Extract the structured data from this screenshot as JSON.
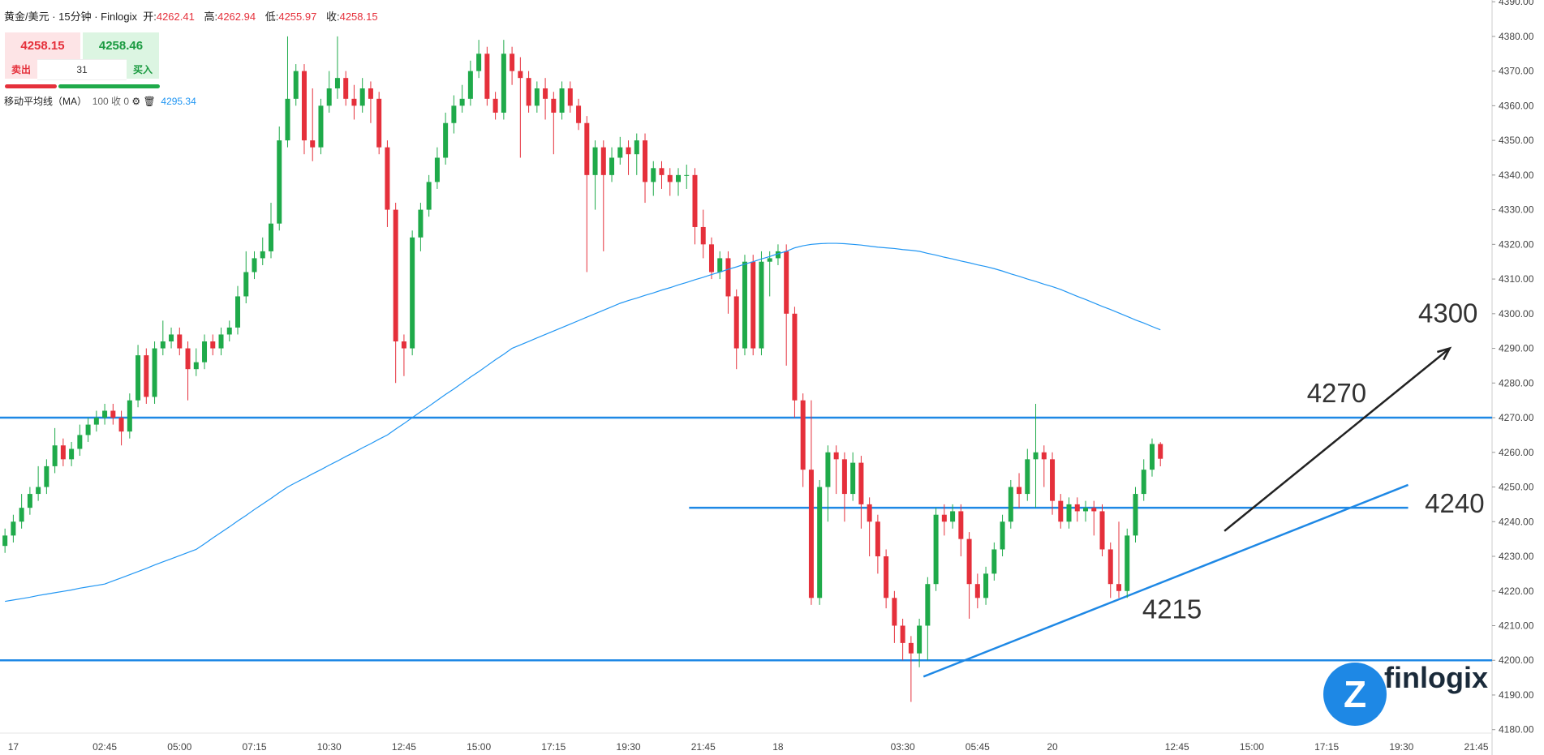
{
  "header": {
    "symbol": "黄金/美元 · 15分钟 · Finlogix",
    "open_label": "开:",
    "high_label": "高:",
    "low_label": "低:",
    "close_label": "收:"
  },
  "quote": {
    "sell": 4258.15,
    "buy": 4258.46,
    "spread": 31,
    "sell_label": "卖出",
    "buy_label": "买入"
  },
  "indicator": {
    "params": "100 收 0"
  },
  "logo": "finlogix",
  "chart_data": {
    "type": "candlestick",
    "up_color": "#1faa4a",
    "down_color": "#e5303b",
    "open": [
      4233,
      4236,
      4240,
      4244,
      4248,
      4250,
      4256,
      4262,
      4258,
      4261,
      4265,
      4268,
      4270,
      4272,
      4270,
      4266,
      4275,
      4288,
      4276,
      4290,
      4292,
      4294,
      4290,
      4284,
      4286,
      4292,
      4290,
      4294,
      4296,
      4305,
      4312,
      4316,
      4318,
      4326,
      4350,
      4362,
      4370,
      4350,
      4348,
      4360,
      4365,
      4368,
      4362,
      4360,
      4365,
      4362,
      4348,
      4330,
      4292,
      4290,
      4322,
      4330,
      4338,
      4345,
      4355,
      4360,
      4362,
      4370,
      4375,
      4362,
      4358,
      4375,
      4370,
      4368,
      4360,
      4365,
      4362,
      4358,
      4365,
      4360,
      4355,
      4340,
      4348,
      4340,
      4345,
      4348,
      4346,
      4350,
      4338,
      4342,
      4340,
      4338,
      4340,
      4340,
      4325,
      4320,
      4312,
      4316,
      4305,
      4290,
      4315,
      4290,
      4315,
      4316,
      4318,
      4300,
      4275,
      4255,
      4218,
      4250,
      4260,
      4258,
      4248,
      4257,
      4245,
      4240,
      4230,
      4218,
      4210,
      4205,
      4202,
      4210,
      4222,
      4242,
      4240,
      4243,
      4235,
      4222,
      4218,
      4225,
      4232,
      4240,
      4250,
      4248,
      4258,
      4260,
      4258,
      4246,
      4240,
      4245,
      4243,
      4244,
      4243,
      4232,
      4222,
      4220,
      4236,
      4248,
      4255,
      4262.41
    ],
    "high": [
      4238,
      4242,
      4248,
      4250,
      4256,
      4258,
      4267,
      4264,
      4263,
      4268,
      4270,
      4272,
      4274,
      4274,
      4272,
      4277,
      4291,
      4290,
      4292,
      4298,
      4296,
      4296,
      4292,
      4290,
      4294,
      4294,
      4296,
      4298,
      4308,
      4318,
      4318,
      4322,
      4332,
      4354,
      4380,
      4372,
      4372,
      4365,
      4362,
      4370,
      4380,
      4370,
      4366,
      4368,
      4367,
      4364,
      4350,
      4332,
      4294,
      4324,
      4332,
      4340,
      4348,
      4358,
      4363,
      4366,
      4373,
      4379,
      4377,
      4364,
      4379,
      4377,
      4374,
      4370,
      4367,
      4368,
      4364,
      4367,
      4367,
      4362,
      4357,
      4350,
      4350,
      4348,
      4351,
      4350,
      4352,
      4352,
      4344,
      4344,
      4342,
      4342,
      4343,
      4342,
      4330,
      4322,
      4318,
      4318,
      4307,
      4317,
      4317,
      4318,
      4318,
      4320,
      4320,
      4302,
      4277,
      4275,
      4252,
      4262,
      4262,
      4260,
      4260,
      4259,
      4247,
      4242,
      4232,
      4220,
      4212,
      4207,
      4212,
      4224,
      4244,
      4245,
      4245,
      4245,
      4237,
      4225,
      4227,
      4234,
      4242,
      4252,
      4254,
      4261,
      4274,
      4262,
      4260,
      4248,
      4247,
      4247,
      4246,
      4246,
      4245,
      4234,
      4240,
      4238,
      4250,
      4258,
      4264,
      4262.94
    ],
    "low": [
      4231,
      4234,
      4238,
      4242,
      4246,
      4248,
      4254,
      4256,
      4256,
      4259,
      4263,
      4266,
      4268,
      4268,
      4262,
      4264,
      4273,
      4274,
      4274,
      4288,
      4290,
      4288,
      4275,
      4282,
      4284,
      4288,
      4288,
      4292,
      4294,
      4303,
      4310,
      4314,
      4316,
      4324,
      4348,
      4360,
      4346,
      4344,
      4346,
      4358,
      4362,
      4360,
      4356,
      4358,
      4355,
      4346,
      4325,
      4280,
      4282,
      4288,
      4318,
      4328,
      4336,
      4343,
      4352,
      4358,
      4360,
      4368,
      4360,
      4356,
      4356,
      4366,
      4345,
      4358,
      4358,
      4356,
      4346,
      4356,
      4358,
      4353,
      4312,
      4330,
      4318,
      4338,
      4343,
      4340,
      4340,
      4332,
      4334,
      4336,
      4334,
      4334,
      4336,
      4320,
      4316,
      4310,
      4310,
      4300,
      4284,
      4288,
      4288,
      4288,
      4305,
      4314,
      4285,
      4270,
      4250,
      4216,
      4216,
      4240,
      4248,
      4240,
      4246,
      4238,
      4230,
      4225,
      4215,
      4205,
      4200,
      4188,
      4198,
      4200,
      4220,
      4236,
      4238,
      4230,
      4212,
      4215,
      4216,
      4223,
      4230,
      4238,
      4244,
      4246,
      4244,
      4250,
      4242,
      4238,
      4238,
      4240,
      4240,
      4236,
      4230,
      4218,
      4218,
      4218,
      4234,
      4246,
      4253,
      4255.97
    ],
    "close": [
      4236,
      4240,
      4244,
      4248,
      4250,
      4256,
      4262,
      4258,
      4261,
      4265,
      4268,
      4270,
      4272,
      4270,
      4266,
      4275,
      4288,
      4276,
      4290,
      4292,
      4294,
      4290,
      4284,
      4286,
      4292,
      4290,
      4294,
      4296,
      4305,
      4312,
      4316,
      4318,
      4326,
      4350,
      4362,
      4370,
      4350,
      4348,
      4360,
      4365,
      4368,
      4362,
      4360,
      4365,
      4362,
      4348,
      4330,
      4292,
      4290,
      4322,
      4330,
      4338,
      4345,
      4355,
      4360,
      4362,
      4370,
      4375,
      4362,
      4358,
      4375,
      4370,
      4368,
      4360,
      4365,
      4362,
      4358,
      4365,
      4360,
      4355,
      4340,
      4348,
      4340,
      4345,
      4348,
      4346,
      4350,
      4338,
      4342,
      4340,
      4338,
      4340,
      4340,
      4325,
      4320,
      4312,
      4316,
      4305,
      4290,
      4315,
      4290,
      4315,
      4316,
      4318,
      4300,
      4275,
      4255,
      4218,
      4250,
      4260,
      4258,
      4248,
      4257,
      4245,
      4240,
      4230,
      4218,
      4210,
      4205,
      4202,
      4210,
      4222,
      4242,
      4240,
      4243,
      4235,
      4222,
      4218,
      4225,
      4232,
      4240,
      4250,
      4248,
      4258,
      4260,
      4258,
      4246,
      4240,
      4245,
      4243,
      4244,
      4243,
      4232,
      4222,
      4220,
      4236,
      4248,
      4255,
      4262.41,
      4258.15
    ],
    "series": [
      {
        "name": "移动平均线（MA）",
        "color": "#2196f3",
        "values": [
          4217,
          4217.4,
          4217.8,
          4218.2,
          4218.7,
          4219.1,
          4219.5,
          4219.9,
          4220.3,
          4220.8,
          4221.2,
          4221.6,
          4222,
          4222.9,
          4223.8,
          4224.7,
          4225.6,
          4226.5,
          4227.5,
          4228.4,
          4229.3,
          4230.2,
          4231.1,
          4232,
          4233.6,
          4235.3,
          4236.9,
          4238.5,
          4240.2,
          4241.8,
          4243.5,
          4245.1,
          4246.7,
          4248.4,
          4250,
          4251.3,
          4252.5,
          4253.8,
          4255,
          4256.3,
          4257.5,
          4258.8,
          4260,
          4261.3,
          4262.5,
          4263.8,
          4265,
          4266.7,
          4268.3,
          4270,
          4271.7,
          4273.3,
          4275,
          4276.7,
          4278.3,
          4280,
          4281.7,
          4283.3,
          4285,
          4286.7,
          4288.3,
          4290,
          4291,
          4292,
          4293,
          4294,
          4295,
          4296,
          4297,
          4298,
          4299,
          4300,
          4301,
          4302,
          4303,
          4303.8,
          4304.5,
          4305.3,
          4306,
          4306.8,
          4307.5,
          4308.3,
          4309,
          4309.8,
          4310.5,
          4311.3,
          4312,
          4312.8,
          4313.5,
          4314.3,
          4315,
          4315.8,
          4316.5,
          4317.3,
          4318,
          4319,
          4319.6,
          4320,
          4320.2,
          4320.3,
          4320.3,
          4320.2,
          4320,
          4319.8,
          4319.5,
          4319.2,
          4319,
          4318.8,
          4318.5,
          4318.3,
          4318,
          4317.4,
          4316.9,
          4316.3,
          4315.8,
          4315.2,
          4314.7,
          4314.1,
          4313.6,
          4313,
          4312.3,
          4311.5,
          4310.8,
          4310,
          4309.3,
          4308.5,
          4307.8,
          4307,
          4306,
          4305,
          4304.1,
          4303.1,
          4302.1,
          4301.2,
          4300.2,
          4299.2,
          4298.2,
          4297.3,
          4296.3,
          4295.34
        ]
      }
    ],
    "xlim": [
      -0.6,
      178.9
    ],
    "ylim": [
      4179,
      4390.5
    ],
    "xticks": [
      {
        "value": 1,
        "label": "17"
      },
      {
        "value": 12,
        "label": "02:45"
      },
      {
        "value": 21,
        "label": "05:00"
      },
      {
        "value": 30,
        "label": "07:15"
      },
      {
        "value": 39,
        "label": "10:30"
      },
      {
        "value": 48,
        "label": "12:45"
      },
      {
        "value": 57,
        "label": "15:00"
      },
      {
        "value": 66,
        "label": "17:15"
      },
      {
        "value": 75,
        "label": "19:30"
      },
      {
        "value": 84,
        "label": "21:45"
      },
      {
        "value": 93,
        "label": "18"
      },
      {
        "value": 108,
        "label": "03:30"
      },
      {
        "value": 117,
        "label": "05:45"
      },
      {
        "value": 126,
        "label": "20"
      },
      {
        "value": 141,
        "label": "12:45"
      },
      {
        "value": 150,
        "label": "15:00"
      },
      {
        "value": 159,
        "label": "17:15"
      },
      {
        "value": 168,
        "label": "19:30"
      },
      {
        "value": 177,
        "label": "21:45"
      }
    ],
    "yticks": [
      {
        "value": 4180,
        "label": "4180.00"
      },
      {
        "value": 4190,
        "label": "4190.00"
      },
      {
        "value": 4200,
        "label": "4200.00"
      },
      {
        "value": 4210,
        "label": "4210.00"
      },
      {
        "value": 4220,
        "label": "4220.00"
      },
      {
        "value": 4230,
        "label": "4230.00"
      },
      {
        "value": 4240,
        "label": "4240.00"
      },
      {
        "value": 4250,
        "label": "4250.00"
      },
      {
        "value": 4260,
        "label": "4260.00"
      },
      {
        "value": 4270,
        "label": "4270.00"
      },
      {
        "value": 4280,
        "label": "4280.00"
      },
      {
        "value": 4290,
        "label": "4290.00"
      },
      {
        "value": 4300,
        "label": "4300.00"
      },
      {
        "value": 4310,
        "label": "4310.00"
      },
      {
        "value": 4320,
        "label": "4320.00"
      },
      {
        "value": 4330,
        "label": "4330.00"
      },
      {
        "value": 4340,
        "label": "4340.00"
      },
      {
        "value": 4350,
        "label": "4350.00"
      },
      {
        "value": 4360,
        "label": "4360.00"
      },
      {
        "value": 4370,
        "label": "4370.00"
      },
      {
        "value": 4380,
        "label": "4380.00"
      },
      {
        "value": 4390,
        "label": "4390.00"
      }
    ],
    "levels": [
      {
        "value": 4270
      },
      {
        "value": 4244,
        "from": 82.3,
        "to": 168.8
      },
      {
        "value": 4200
      }
    ],
    "trendline": {
      "x": [
        110.5,
        168.8
      ],
      "y": [
        4195.3,
        4250.6
      ]
    },
    "arrow": {
      "x": [
        146.7,
        173.8
      ],
      "y": [
        4237.3,
        4290
      ]
    },
    "annotations": [
      {
        "text": "4300",
        "x": 173.6,
        "y": 4300.3
      },
      {
        "text": "4270",
        "x": 160.2,
        "y": 4277.3
      },
      {
        "text": "4240",
        "x": 174.4,
        "y": 4245.5
      },
      {
        "text": "4215",
        "x": 140.4,
        "y": 4214.9
      }
    ]
  }
}
